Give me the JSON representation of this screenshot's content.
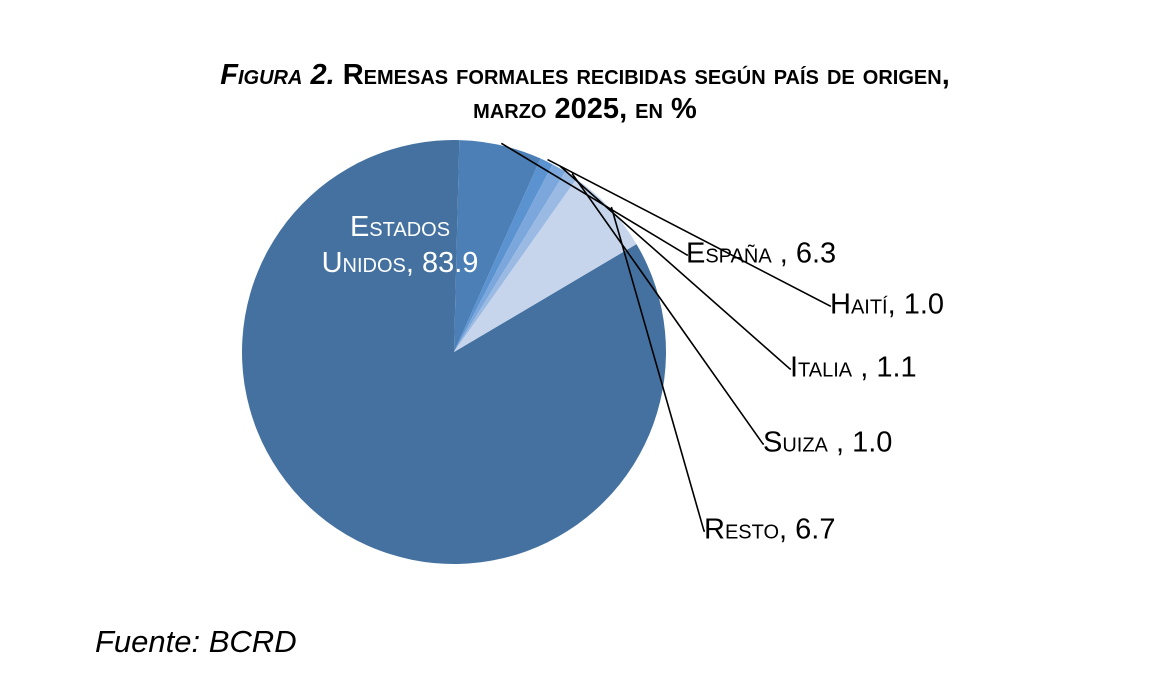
{
  "title": {
    "figure_label": "Figura 2.",
    "line1": "Remesas formales recibidas según país de origen,",
    "line2": "marzo 2025, en %"
  },
  "source": "Fuente: BCRD",
  "chart_data": {
    "type": "pie",
    "title": "Figura 2. Remesas formales recibidas según país de origen, marzo 2025, en %",
    "unit": "%",
    "start_angle_deg": 59.4,
    "direction": "clockwise",
    "slices": [
      {
        "name": "Estados Unidos",
        "value": 83.9,
        "label_lines": [
          "Estados",
          "Unidos, 83.9"
        ],
        "label_position": "inside",
        "color": "#44719f"
      },
      {
        "name": "España",
        "value": 6.3,
        "label": "España , 6.3",
        "label_position": "outside",
        "color": "#4b7fb5"
      },
      {
        "name": "Haití",
        "value": 1.0,
        "label": "Haití, 1.0",
        "label_position": "outside",
        "color": "#5b92d0"
      },
      {
        "name": "Italia",
        "value": 1.1,
        "label": "Italia , 1.1",
        "label_position": "outside",
        "color": "#7ba7dc"
      },
      {
        "name": "Suiza",
        "value": 1.0,
        "label": "Suiza , 1.0",
        "label_position": "outside",
        "color": "#9bbae3"
      },
      {
        "name": "Resto",
        "value": 6.7,
        "label": "Resto, 6.7",
        "label_position": "outside",
        "color": "#c6d5ec"
      }
    ]
  }
}
